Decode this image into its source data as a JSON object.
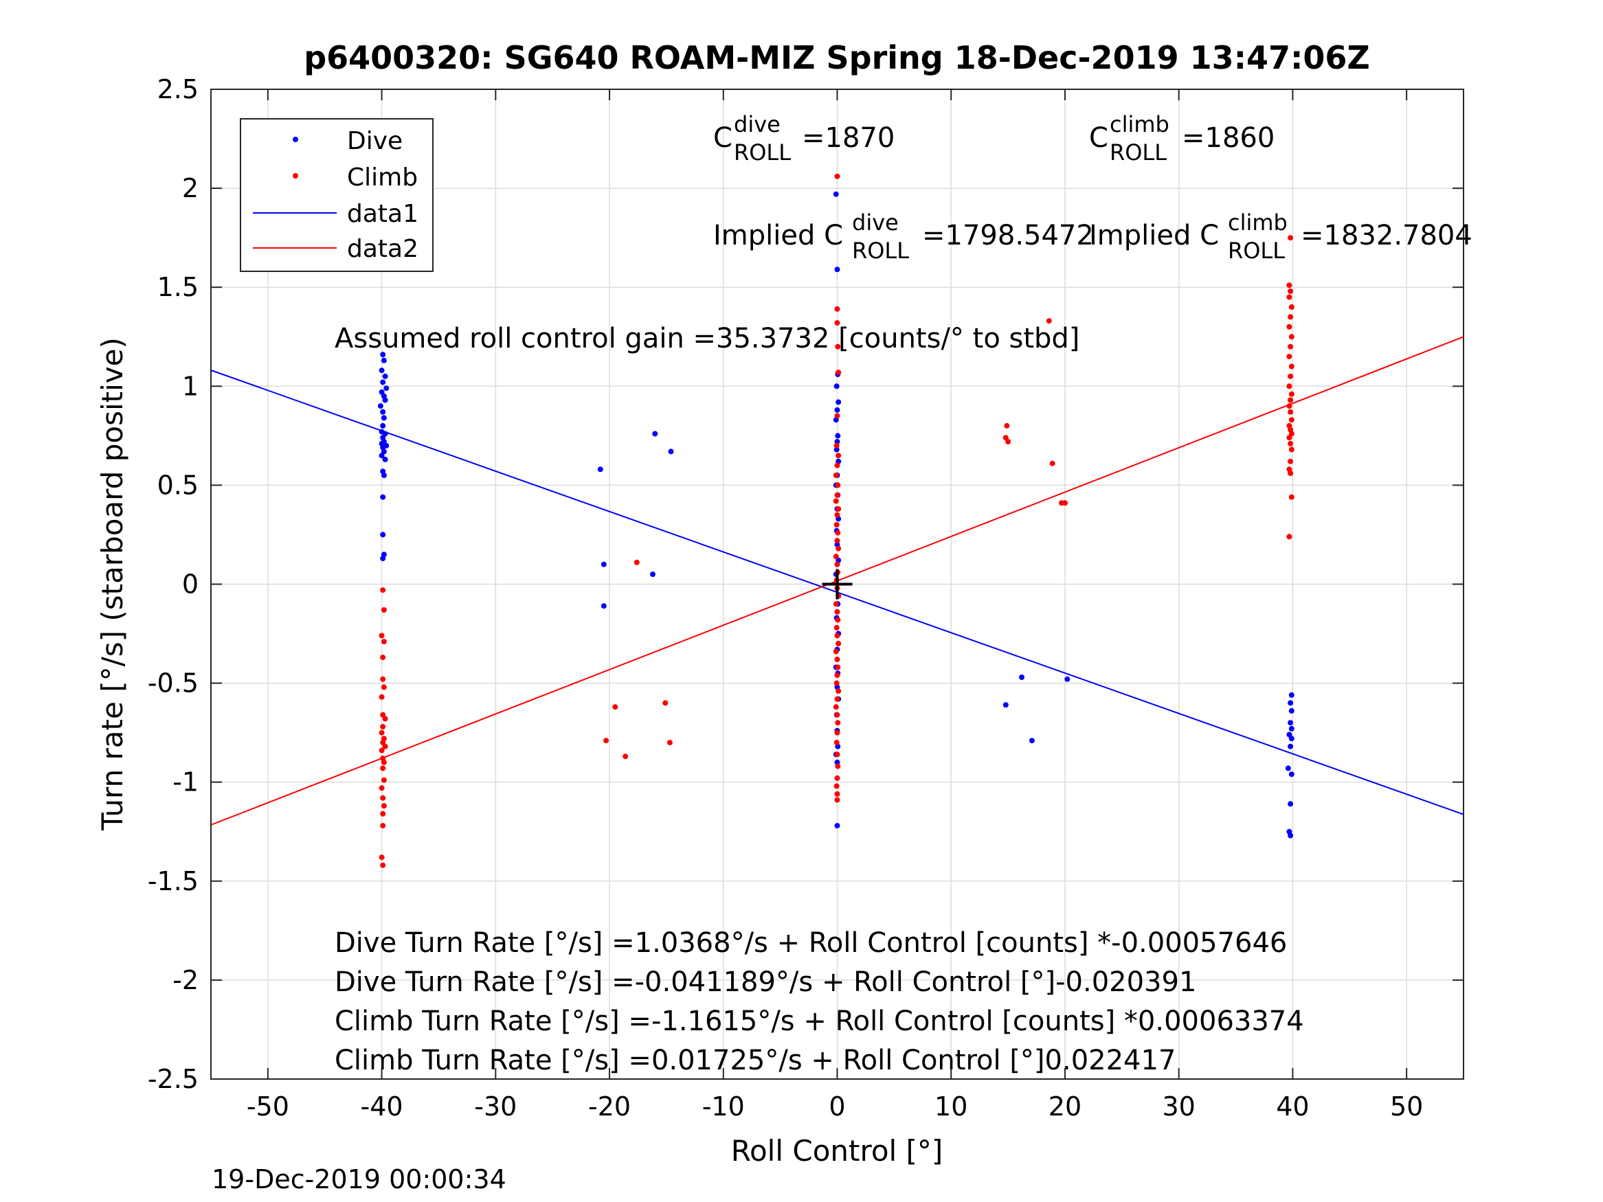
{
  "chart_data": {
    "type": "scatter",
    "title": "p6400320: SG640 ROAM-MIZ Spring 18-Dec-2019 13:47:06Z",
    "xlabel": "Roll Control [°]",
    "ylabel": "Turn rate [°/s] (starboard positive)",
    "xlim": [
      -55,
      55
    ],
    "ylim": [
      -2.5,
      2.5
    ],
    "xticks": [
      -50,
      -40,
      -30,
      -20,
      -10,
      0,
      10,
      20,
      30,
      40,
      50
    ],
    "xtick_labels": [
      "-50",
      "-40",
      "-30",
      "-20",
      "-10",
      "0",
      "10",
      "20",
      "30",
      "40",
      "50"
    ],
    "yticks": [
      -2.5,
      -2,
      -1.5,
      -1,
      -0.5,
      0,
      0.5,
      1,
      1.5,
      2,
      2.5
    ],
    "ytick_labels": [
      "-2.5",
      "-2",
      "-1.5",
      "-1",
      "-0.5",
      "0",
      "0.5",
      "1",
      "1.5",
      "2",
      "2.5"
    ],
    "grid": true,
    "legend_position": "top-left",
    "legend": [
      "Dive",
      "Climb",
      "data1",
      "data2"
    ],
    "colors": {
      "dive": "#0000ff",
      "climb": "#ff0000",
      "axis": "#262626",
      "grid": "#dcdcdc"
    },
    "series": [
      {
        "name": "Dive",
        "kind": "points",
        "color": "#0000ff",
        "points": [
          [
            -39.9,
            1.16
          ],
          [
            -39.8,
            1.13
          ],
          [
            -40.0,
            1.08
          ],
          [
            -39.7,
            1.05
          ],
          [
            -39.9,
            1.02
          ],
          [
            -39.6,
            0.99
          ],
          [
            -40.0,
            0.97
          ],
          [
            -39.8,
            0.95
          ],
          [
            -39.7,
            0.93
          ],
          [
            -40.1,
            0.9
          ],
          [
            -39.9,
            0.87
          ],
          [
            -39.8,
            0.84
          ],
          [
            -39.9,
            0.8
          ],
          [
            -40.0,
            0.77
          ],
          [
            -39.7,
            0.76
          ],
          [
            -39.9,
            0.74
          ],
          [
            -39.8,
            0.72
          ],
          [
            -40.0,
            0.71
          ],
          [
            -39.6,
            0.7
          ],
          [
            -39.9,
            0.69
          ],
          [
            -39.8,
            0.67
          ],
          [
            -40.0,
            0.65
          ],
          [
            -39.7,
            0.63
          ],
          [
            -39.9,
            0.57
          ],
          [
            -39.8,
            0.55
          ],
          [
            -39.9,
            0.44
          ],
          [
            -39.9,
            0.25
          ],
          [
            -39.8,
            0.15
          ],
          [
            -39.9,
            0.13
          ],
          [
            -20.8,
            0.58
          ],
          [
            -20.5,
            0.1
          ],
          [
            -20.5,
            -0.11
          ],
          [
            -16.0,
            0.76
          ],
          [
            -14.6,
            0.67
          ],
          [
            -16.2,
            0.05
          ],
          [
            -0.1,
            1.97
          ],
          [
            0.0,
            1.59
          ],
          [
            0.05,
            1.06
          ],
          [
            -0.05,
            1.0
          ],
          [
            0.1,
            0.92
          ],
          [
            0.0,
            0.88
          ],
          [
            -0.1,
            0.83
          ],
          [
            0.05,
            0.75
          ],
          [
            0.0,
            0.72
          ],
          [
            -0.05,
            0.68
          ],
          [
            0.1,
            0.62
          ],
          [
            0.0,
            0.55
          ],
          [
            -0.1,
            0.5
          ],
          [
            0.05,
            0.45
          ],
          [
            0.0,
            0.38
          ],
          [
            0.1,
            0.33
          ],
          [
            -0.05,
            0.27
          ],
          [
            0.0,
            0.2
          ],
          [
            0.1,
            0.12
          ],
          [
            -0.1,
            0.05
          ],
          [
            0.0,
            -0.02
          ],
          [
            0.05,
            -0.1
          ],
          [
            -0.05,
            -0.17
          ],
          [
            0.1,
            -0.25
          ],
          [
            0.0,
            -0.33
          ],
          [
            -0.1,
            -0.42
          ],
          [
            0.05,
            -0.45
          ],
          [
            0.0,
            -0.52
          ],
          [
            0.1,
            -0.58
          ],
          [
            -0.05,
            -0.66
          ],
          [
            0.0,
            -0.74
          ],
          [
            0.05,
            -0.82
          ],
          [
            -0.1,
            -0.86
          ],
          [
            0.0,
            -0.9
          ],
          [
            0.0,
            -1.22
          ],
          [
            14.8,
            -0.61
          ],
          [
            16.2,
            -0.47
          ],
          [
            17.1,
            -0.79
          ],
          [
            20.2,
            -0.48
          ],
          [
            39.9,
            -0.56
          ],
          [
            39.8,
            -0.6
          ],
          [
            39.9,
            -0.64
          ],
          [
            39.8,
            -0.7
          ],
          [
            39.9,
            -0.73
          ],
          [
            39.7,
            -0.76
          ],
          [
            39.9,
            -0.78
          ],
          [
            39.8,
            -0.82
          ],
          [
            39.6,
            -0.93
          ],
          [
            39.9,
            -0.96
          ],
          [
            39.8,
            -1.11
          ],
          [
            39.7,
            -1.25
          ],
          [
            39.8,
            -1.27
          ]
        ]
      },
      {
        "name": "Climb",
        "kind": "points",
        "color": "#ff0000",
        "points": [
          [
            -39.9,
            -0.03
          ],
          [
            -39.8,
            -0.13
          ],
          [
            -40.0,
            -0.26
          ],
          [
            -39.8,
            -0.29
          ],
          [
            -39.9,
            -0.37
          ],
          [
            -39.9,
            -0.48
          ],
          [
            -39.8,
            -0.52
          ],
          [
            -40.0,
            -0.57
          ],
          [
            -39.9,
            -0.66
          ],
          [
            -39.7,
            -0.68
          ],
          [
            -39.9,
            -0.72
          ],
          [
            -40.0,
            -0.75
          ],
          [
            -39.8,
            -0.78
          ],
          [
            -39.9,
            -0.8
          ],
          [
            -39.7,
            -0.82
          ],
          [
            -40.0,
            -0.84
          ],
          [
            -39.9,
            -0.88
          ],
          [
            -39.8,
            -0.9
          ],
          [
            -39.9,
            -0.93
          ],
          [
            -39.8,
            -0.99
          ],
          [
            -40.0,
            -1.03
          ],
          [
            -39.9,
            -1.08
          ],
          [
            -39.8,
            -1.12
          ],
          [
            -39.9,
            -1.16
          ],
          [
            -39.9,
            -1.22
          ],
          [
            -40.0,
            -1.38
          ],
          [
            -39.9,
            -1.42
          ],
          [
            -20.3,
            -0.79
          ],
          [
            -19.5,
            -0.62
          ],
          [
            -18.6,
            -0.87
          ],
          [
            -17.6,
            0.11
          ],
          [
            -15.1,
            -0.6
          ],
          [
            -14.7,
            -0.8
          ],
          [
            0.0,
            2.06
          ],
          [
            0.0,
            1.39
          ],
          [
            0.0,
            1.32
          ],
          [
            0.05,
            1.2
          ],
          [
            0.1,
            1.07
          ],
          [
            0.0,
            0.85
          ],
          [
            -0.05,
            0.7
          ],
          [
            0.1,
            0.65
          ],
          [
            0.0,
            0.6
          ],
          [
            -0.1,
            0.55
          ],
          [
            0.05,
            0.5
          ],
          [
            0.0,
            0.45
          ],
          [
            -0.1,
            0.42
          ],
          [
            0.1,
            0.38
          ],
          [
            0.0,
            0.35
          ],
          [
            -0.05,
            0.3
          ],
          [
            0.05,
            0.26
          ],
          [
            0.0,
            0.22
          ],
          [
            0.1,
            0.18
          ],
          [
            -0.1,
            0.14
          ],
          [
            0.0,
            0.1
          ],
          [
            0.05,
            0.06
          ],
          [
            -0.05,
            0.02
          ],
          [
            0.0,
            -0.02
          ],
          [
            0.1,
            -0.06
          ],
          [
            -0.1,
            -0.1
          ],
          [
            0.0,
            -0.14
          ],
          [
            0.05,
            -0.18
          ],
          [
            -0.05,
            -0.22
          ],
          [
            0.0,
            -0.26
          ],
          [
            0.1,
            -0.3
          ],
          [
            -0.1,
            -0.34
          ],
          [
            0.0,
            -0.38
          ],
          [
            0.05,
            -0.42
          ],
          [
            0.0,
            -0.46
          ],
          [
            -0.05,
            -0.5
          ],
          [
            0.1,
            -0.54
          ],
          [
            0.0,
            -0.58
          ],
          [
            -0.1,
            -0.62
          ],
          [
            0.0,
            -0.66
          ],
          [
            0.05,
            -0.7
          ],
          [
            0.0,
            -0.75
          ],
          [
            -0.05,
            -0.8
          ],
          [
            0.0,
            -0.86
          ],
          [
            0.05,
            -0.92
          ],
          [
            0.0,
            -0.98
          ],
          [
            -0.05,
            -1.02
          ],
          [
            0.0,
            -1.06
          ],
          [
            0.0,
            -1.09
          ],
          [
            14.9,
            0.8
          ],
          [
            14.8,
            0.74
          ],
          [
            15.0,
            0.72
          ],
          [
            18.6,
            1.33
          ],
          [
            18.9,
            0.61
          ],
          [
            19.7,
            0.41
          ],
          [
            20.0,
            0.41
          ],
          [
            39.8,
            1.75
          ],
          [
            39.7,
            1.51
          ],
          [
            39.8,
            1.48
          ],
          [
            39.7,
            1.45
          ],
          [
            39.9,
            1.4
          ],
          [
            39.8,
            1.35
          ],
          [
            39.7,
            1.3
          ],
          [
            39.9,
            1.25
          ],
          [
            39.8,
            1.2
          ],
          [
            39.7,
            1.15
          ],
          [
            39.9,
            1.1
          ],
          [
            39.8,
            1.05
          ],
          [
            39.7,
            1.0
          ],
          [
            39.9,
            0.96
          ],
          [
            39.8,
            0.93
          ],
          [
            39.7,
            0.9
          ],
          [
            39.8,
            0.87
          ],
          [
            39.9,
            0.83
          ],
          [
            39.7,
            0.8
          ],
          [
            39.8,
            0.78
          ],
          [
            39.9,
            0.76
          ],
          [
            39.7,
            0.74
          ],
          [
            39.8,
            0.71
          ],
          [
            39.9,
            0.68
          ],
          [
            39.8,
            0.62
          ],
          [
            39.7,
            0.58
          ],
          [
            39.8,
            0.56
          ],
          [
            39.9,
            0.44
          ],
          [
            39.7,
            0.24
          ]
        ]
      },
      {
        "name": "data1",
        "kind": "line",
        "color": "#0000ff",
        "points": [
          [
            -55,
            1.081
          ],
          [
            55,
            -1.163
          ]
        ]
      },
      {
        "name": "data2",
        "kind": "line",
        "color": "#ff0000",
        "points": [
          [
            -55,
            -1.216
          ],
          [
            55,
            1.25
          ]
        ]
      }
    ],
    "annotations": {
      "c_dive": "=1870",
      "c_climb": "=1860",
      "implied_prefix": "Implied C",
      "implied_dive_value": "=1798.5472",
      "implied_climb_value": "=1832.7804",
      "c_symbol": "C",
      "sup_dive": "dive",
      "sup_climb": "climb",
      "sub_roll": "ROLL",
      "gain": "Assumed roll control gain =35.3732 [counts/° to stbd]",
      "fit_lines": [
        "Dive Turn Rate [°/s] =1.0368°/s + Roll Control [counts] *-0.00057646",
        "Dive Turn Rate [°/s] =-0.041189°/s + Roll Control [°]-0.020391",
        "Climb Turn Rate [°/s] =-1.1615°/s + Roll Control [counts] *0.00063374",
        "Climb Turn Rate [°/s] =0.01725°/s + Roll Control [°]0.022417"
      ]
    },
    "timestamp": "19-Dec-2019 00:00:34",
    "marker": {
      "type": "plus",
      "x": 0,
      "y": 0
    }
  }
}
